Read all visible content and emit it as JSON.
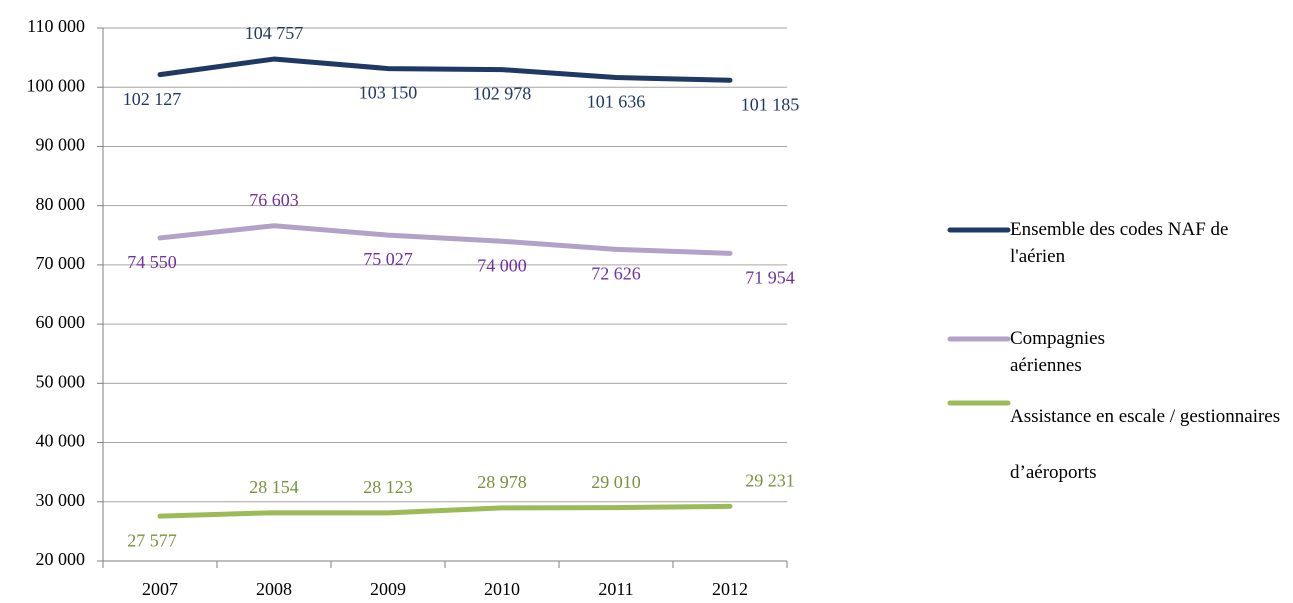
{
  "chart_data": {
    "type": "line",
    "categories": [
      "2007",
      "2008",
      "2009",
      "2010",
      "2011",
      "2012"
    ],
    "series": [
      {
        "name": "Ensemble des codes NAF de l'aérien",
        "color": "#1f3864",
        "label_color": "#1f3864",
        "values": [
          102127,
          104757,
          103150,
          102978,
          101636,
          101185
        ],
        "value_labels": [
          "102 127",
          "104 757",
          "103 150",
          "102 978",
          "101 636",
          "101 185"
        ]
      },
      {
        "name": "Compagnies aériennes",
        "color": "#b3a2c7",
        "label_color": "#7030a0",
        "values": [
          74550,
          76603,
          75027,
          74000,
          72626,
          71954
        ],
        "value_labels": [
          "74 550",
          "76 603",
          "75 027",
          "74 000",
          "72 626",
          "71 954"
        ]
      },
      {
        "name": "Assistance en escale / gestionnaires d’aéroports",
        "color": "#9bbb59",
        "label_color": "#77933c",
        "values": [
          27577,
          28154,
          28123,
          28978,
          29010,
          29231
        ],
        "value_labels": [
          "27 577",
          "28 154",
          "28 123",
          "28 978",
          "29 010",
          "29 231"
        ]
      }
    ],
    "ylim": [
      20000,
      110000
    ],
    "yticks": [
      {
        "value": 20000,
        "label": "20 000"
      },
      {
        "value": 30000,
        "label": "30 000"
      },
      {
        "value": 40000,
        "label": "40 000"
      },
      {
        "value": 50000,
        "label": "50 000"
      },
      {
        "value": 60000,
        "label": "60 000"
      },
      {
        "value": 70000,
        "label": "70 000"
      },
      {
        "value": 80000,
        "label": "80 000"
      },
      {
        "value": 90000,
        "label": "90 000"
      },
      {
        "value": 100000,
        "label": "100 000"
      },
      {
        "value": 110000,
        "label": "110 000"
      }
    ],
    "grid": true,
    "legend": "right"
  }
}
